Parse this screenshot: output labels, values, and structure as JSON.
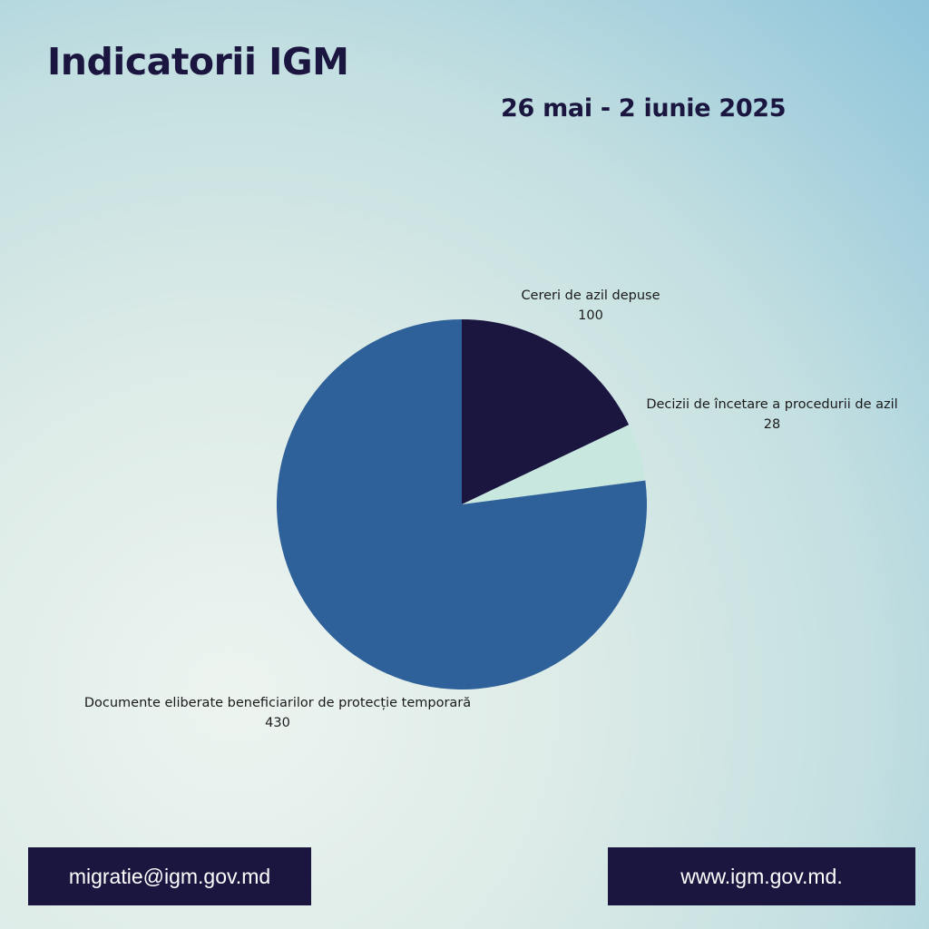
{
  "header": {
    "title": "Indicatorii IGM",
    "date_range": "26 mai - 2 iunie 2025"
  },
  "chart_data": {
    "type": "pie",
    "title": "",
    "slices": [
      {
        "label": "Cereri de azil depuse",
        "value": 100,
        "color": "#1b1640"
      },
      {
        "label": "Decizii de încetare a procedurii de azil",
        "value": 28,
        "color": "#c8e7df"
      },
      {
        "label": "Documente eliberate beneficiarilor de protecție temporară",
        "value": 430,
        "color": "#2e6099"
      }
    ]
  },
  "footer": {
    "email": "migratie@igm.gov.md",
    "website": "www.igm.gov.md."
  }
}
